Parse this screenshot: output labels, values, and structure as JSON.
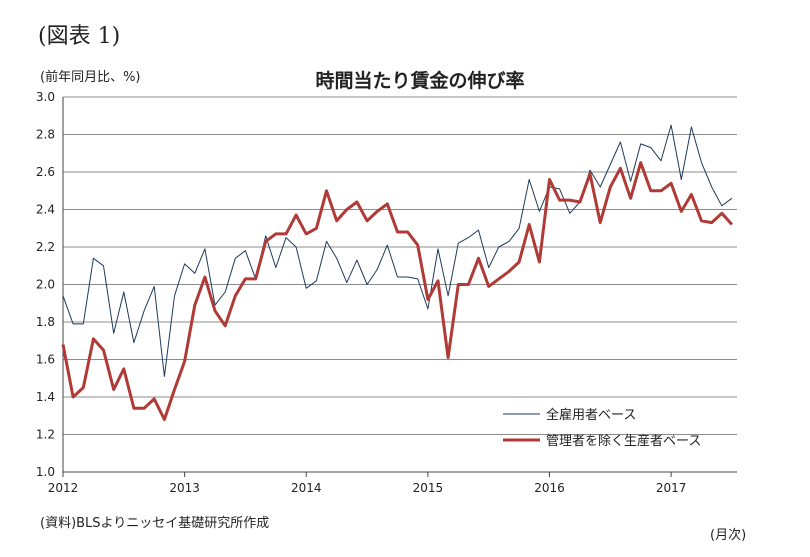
{
  "header": {
    "figure_label": "(図表 1)",
    "unit_label": "(前年同月比、%)",
    "title": "時間当たり賃金の伸び率",
    "source": "(資料)BLSよりニッセイ基礎研究所作成",
    "x_unit": "(月次)"
  },
  "chart_data": {
    "type": "line",
    "title": "時間当たり賃金の伸び率",
    "ylabel": "(前年同月比、%)",
    "xlabel": "(月次)",
    "ylim": [
      1.0,
      3.0
    ],
    "yticks": [
      "1.0",
      "1.2",
      "1.4",
      "1.6",
      "1.8",
      "2.0",
      "2.2",
      "2.4",
      "2.6",
      "2.8",
      "3.0"
    ],
    "xticks": [
      "2012",
      "2013",
      "2014",
      "2015",
      "2016",
      "2017"
    ],
    "x_start": "2012-01",
    "grid": "horizontal",
    "legend": "bottom-right",
    "series": [
      {
        "name": "全雇用者ベース",
        "color": "#1f3a5a",
        "values": [
          1.94,
          1.79,
          1.79,
          2.14,
          2.1,
          1.74,
          1.96,
          1.69,
          1.86,
          1.99,
          1.51,
          1.94,
          2.11,
          2.06,
          2.19,
          1.89,
          1.96,
          2.14,
          2.18,
          2.03,
          2.26,
          2.09,
          2.25,
          2.2,
          1.98,
          2.02,
          2.23,
          2.14,
          2.01,
          2.13,
          2.0,
          2.08,
          2.21,
          2.04,
          2.04,
          2.03,
          1.87,
          2.19,
          1.94,
          2.22,
          2.25,
          2.29,
          2.09,
          2.2,
          2.23,
          2.3,
          2.56,
          2.39,
          2.52,
          2.51,
          2.38,
          2.44,
          2.61,
          2.52,
          2.64,
          2.76,
          2.55,
          2.75,
          2.73,
          2.66,
          2.85,
          2.56,
          2.84,
          2.65,
          2.52,
          2.42,
          2.46
        ]
      },
      {
        "name": "管理者を除く生産者ベース",
        "color": "#b03a36",
        "values": [
          1.68,
          1.4,
          1.45,
          1.71,
          1.65,
          1.44,
          1.55,
          1.34,
          1.34,
          1.39,
          1.28,
          1.44,
          1.59,
          1.89,
          2.04,
          1.86,
          1.78,
          1.94,
          2.03,
          2.03,
          2.23,
          2.27,
          2.27,
          2.37,
          2.27,
          2.3,
          2.5,
          2.34,
          2.4,
          2.44,
          2.34,
          2.39,
          2.43,
          2.28,
          2.28,
          2.21,
          1.92,
          2.02,
          1.61,
          2.0,
          2.0,
          2.14,
          1.99,
          2.03,
          2.07,
          2.12,
          2.32,
          2.12,
          2.56,
          2.45,
          2.45,
          2.44,
          2.59,
          2.33,
          2.52,
          2.62,
          2.46,
          2.65,
          2.5,
          2.5,
          2.54,
          2.39,
          2.48,
          2.34,
          2.33,
          2.38,
          2.32
        ]
      }
    ]
  }
}
